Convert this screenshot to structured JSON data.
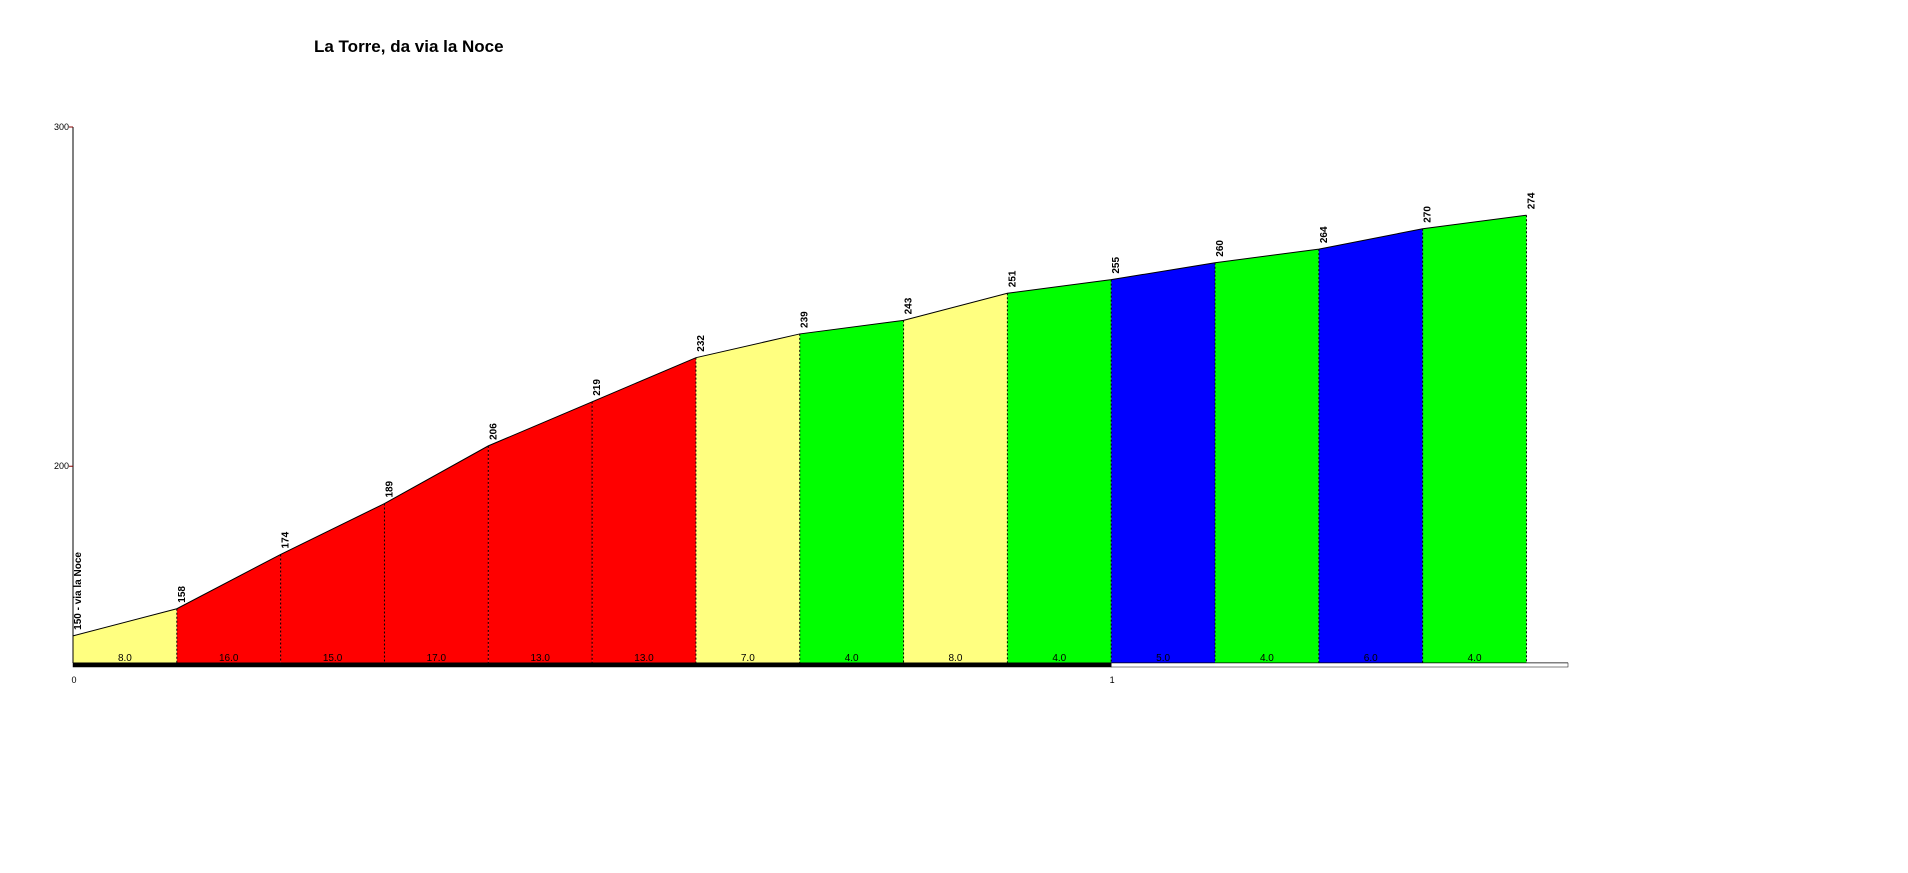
{
  "chart_data": {
    "type": "elevation-profile",
    "title": "La Torre, da via la Noce",
    "x": [
      0,
      0.1,
      0.2,
      0.3,
      0.4,
      0.5,
      0.6,
      0.7,
      0.8,
      0.9,
      1.0,
      1.1,
      1.2,
      1.3,
      1.4
    ],
    "values": [
      150,
      158,
      174,
      189,
      206,
      219,
      232,
      239,
      243,
      251,
      255,
      260,
      264,
      270,
      274
    ],
    "value_labels": [
      "150 - via la Noce",
      "158",
      "174",
      "189",
      "206",
      "219",
      "232",
      "239",
      "243",
      "251",
      "255",
      "260",
      "264",
      "270",
      "274"
    ],
    "segments": {
      "grades": [
        8,
        16,
        15,
        17,
        13,
        13,
        7,
        4,
        8,
        4,
        5,
        4,
        6,
        4
      ],
      "grade_labels": [
        "8.0",
        "16.0",
        "15.0",
        "17.0",
        "13.0",
        "13.0",
        "7.0",
        "4.0",
        "8.0",
        "4.0",
        "5.0",
        "4.0",
        "6.0",
        "4.0"
      ],
      "colors": [
        "#ffff80",
        "#ff0000",
        "#ff0000",
        "#ff0000",
        "#ff0000",
        "#ff0000",
        "#ffff80",
        "#00ff00",
        "#ffff80",
        "#00ff00",
        "#0000ff",
        "#00ff00",
        "#0000ff",
        "#00ff00"
      ]
    },
    "xlim": [
      0,
      1.44
    ],
    "xticks": [
      0,
      1
    ],
    "ylim": [
      142,
      300
    ],
    "yticks": [
      200,
      300
    ]
  }
}
